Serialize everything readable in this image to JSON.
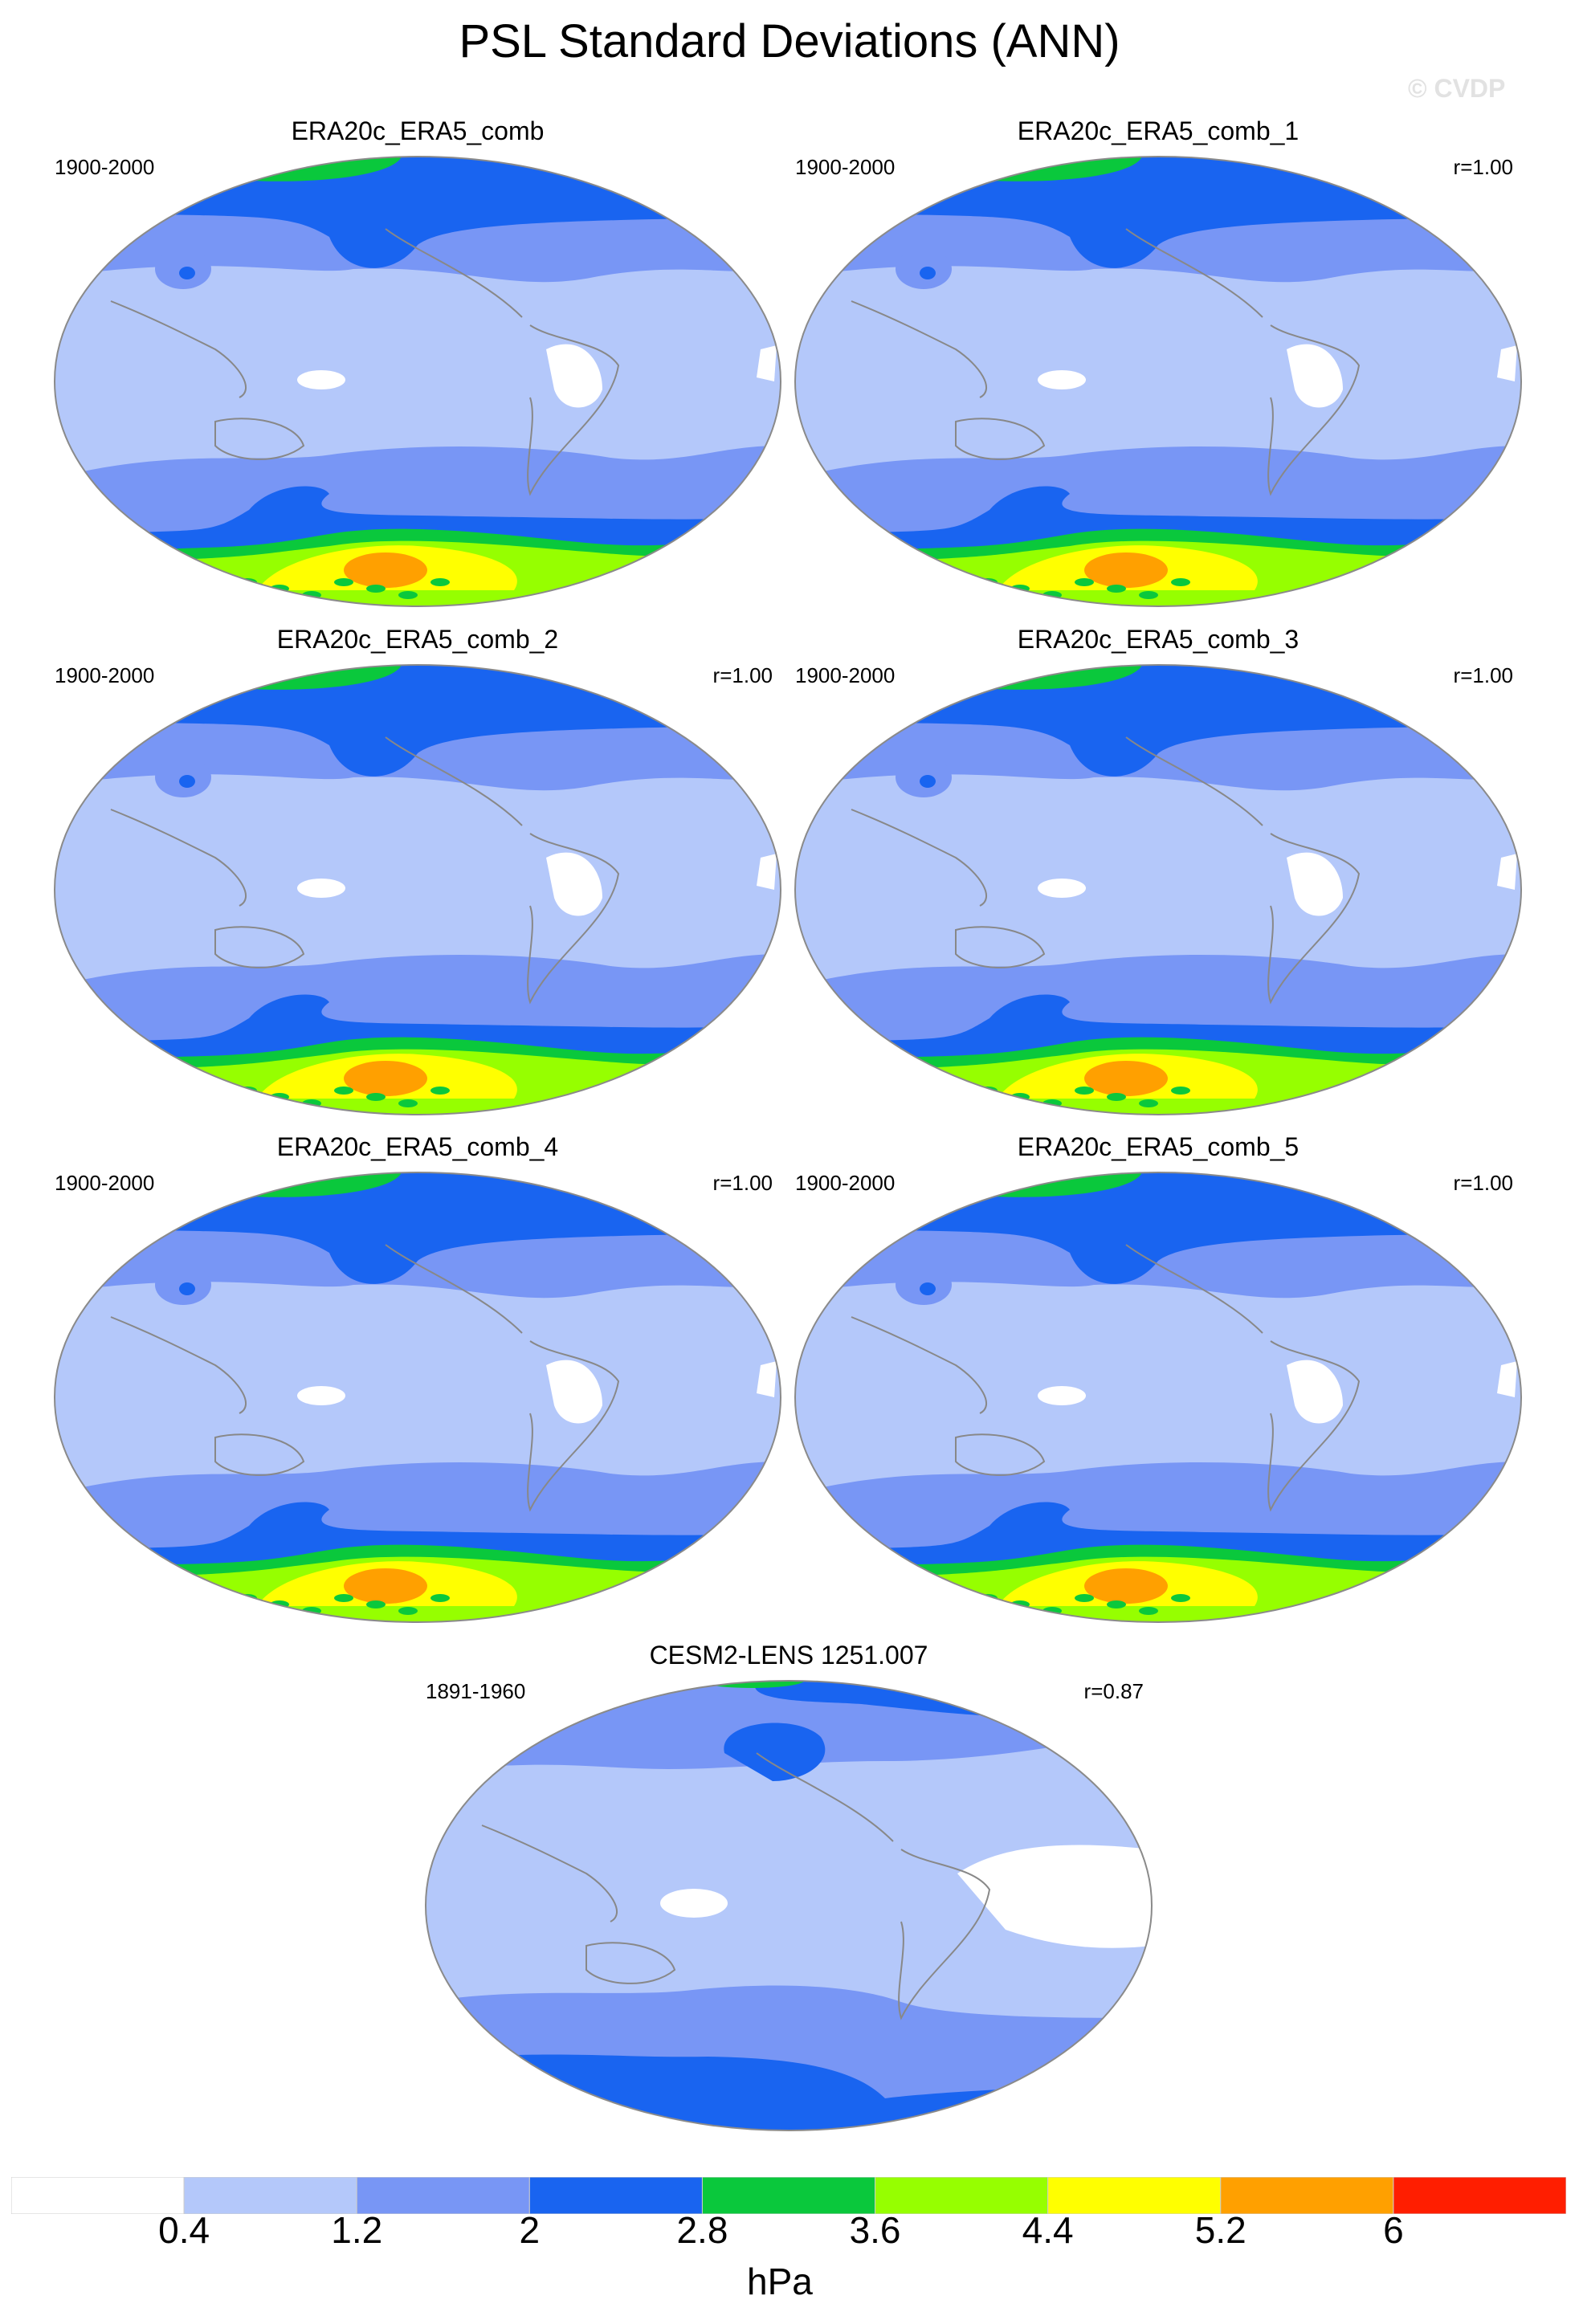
{
  "title": "PSL Standard Deviations (ANN)",
  "watermark": "© CVDP",
  "colors": {
    "white": "#ffffff",
    "lightblue": "#b4c8fa",
    "medblue": "#7896f5",
    "blue": "#1964f0",
    "green": "#0ac83c",
    "lime": "#96ff00",
    "yellow": "#ffff00",
    "orange": "#ffa000",
    "red": "#ff1e00",
    "coast": "#888888"
  },
  "panels": [
    {
      "title": "ERA20c_ERA5_comb",
      "period": "1900-2000",
      "corr": ""
    },
    {
      "title": "ERA20c_ERA5_comb_1",
      "period": "1900-2000",
      "corr": "r=1.00"
    },
    {
      "title": "ERA20c_ERA5_comb_2",
      "period": "1900-2000",
      "corr": "r=1.00"
    },
    {
      "title": "ERA20c_ERA5_comb_3",
      "period": "1900-2000",
      "corr": "r=1.00"
    },
    {
      "title": "ERA20c_ERA5_comb_4",
      "period": "1900-2000",
      "corr": "r=1.00"
    },
    {
      "title": "ERA20c_ERA5_comb_5",
      "period": "1900-2000",
      "corr": "r=1.00"
    },
    {
      "title": "CESM2-LENS 1251.007",
      "period": "1891-1960",
      "corr": "r=0.87"
    }
  ],
  "colorbar": {
    "ticks": [
      "0.4",
      "1.2",
      "2",
      "2.8",
      "3.6",
      "4.4",
      "5.2",
      "6"
    ],
    "colors": [
      "#ffffff",
      "#b4c8fa",
      "#7896f5",
      "#1964f0",
      "#0ac83c",
      "#96ff00",
      "#ffff00",
      "#ffa000",
      "#ff1e00"
    ],
    "units": "hPa"
  }
}
